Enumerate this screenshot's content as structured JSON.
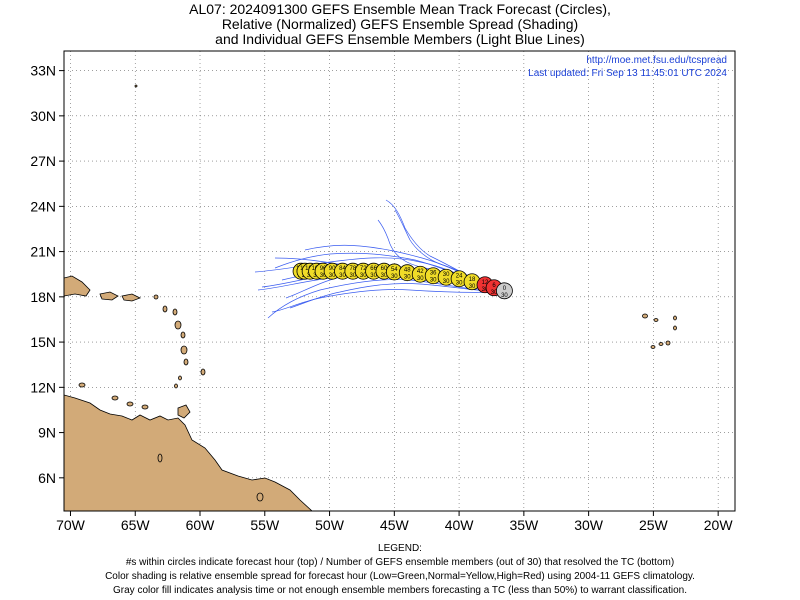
{
  "title": {
    "line1": "AL07: 2024091300 GEFS Ensemble Mean Track Forecast (Circles),",
    "line2": "Relative (Normalized) GEFS Ensemble Spread (Shading)",
    "line3": "and Individual GEFS Ensemble Members (Light Blue Lines)"
  },
  "credit": {
    "url": "http://moe.met.fsu.edu/tcspread",
    "updated": "Last updated: Fri Sep 13 11:45:01 UTC 2024"
  },
  "axes": {
    "lon_labels": [
      "70W",
      "65W",
      "60W",
      "55W",
      "50W",
      "45W",
      "40W",
      "35W",
      "30W",
      "25W",
      "20W"
    ],
    "lon_values": [
      -70,
      -65,
      -60,
      -55,
      -50,
      -45,
      -40,
      -35,
      -30,
      -25,
      -20
    ],
    "lat_labels": [
      "33N",
      "30N",
      "27N",
      "24N",
      "21N",
      "18N",
      "15N",
      "12N",
      "9N",
      "6N"
    ],
    "lat_values": [
      33,
      30,
      27,
      24,
      21,
      18,
      15,
      12,
      9,
      6
    ],
    "lon_range": [
      -70.5,
      -18.7
    ],
    "lat_range": [
      3.8,
      34.3
    ],
    "grid": "dotted"
  },
  "legend": {
    "heading": "LEGEND:",
    "line1": "#s within circles indicate forecast hour (top) / Number of GEFS ensemble members (out of 30) that resolved the TC (bottom)",
    "line2": "Color shading is relative ensemble spread for forecast hour (Low=Green,Normal=Yellow,High=Red) using 2004-11 GEFS climatology.",
    "line3": "Gray color fill indicates analysis time or not enough ensemble members forecasting a TC (less than 50%) to warrant classification."
  },
  "colors": {
    "land": "#d2aa78",
    "member_line": "#3a5cf0",
    "spread_high": "#f03232",
    "spread_normal": "#f0dc28",
    "analysis": "#cccccc"
  },
  "track": [
    {
      "hour": "0",
      "members": "30",
      "lon": -36.5,
      "lat": 18.4,
      "color": "gray"
    },
    {
      "hour": "6",
      "members": "30",
      "lon": -37.3,
      "lat": 18.6,
      "color": "red"
    },
    {
      "hour": "12",
      "members": "30",
      "lon": -38.0,
      "lat": 18.8,
      "color": "red"
    },
    {
      "hour": "18",
      "members": "30",
      "lon": -39.0,
      "lat": 19.0,
      "color": "yellow"
    },
    {
      "hour": "24",
      "members": "30",
      "lon": -40.0,
      "lat": 19.2,
      "color": "yellow"
    },
    {
      "hour": "30",
      "members": "30",
      "lon": -41.0,
      "lat": 19.3,
      "color": "yellow"
    },
    {
      "hour": "36",
      "members": "30",
      "lon": -42.0,
      "lat": 19.4,
      "color": "yellow"
    },
    {
      "hour": "42",
      "members": "30",
      "lon": -43.0,
      "lat": 19.5,
      "color": "yellow"
    },
    {
      "hour": "48",
      "members": "30",
      "lon": -44.0,
      "lat": 19.6,
      "color": "yellow"
    },
    {
      "hour": "54",
      "members": "30",
      "lon": -45.0,
      "lat": 19.65,
      "color": "yellow"
    },
    {
      "hour": "60",
      "members": "30",
      "lon": -45.8,
      "lat": 19.7,
      "color": "yellow"
    },
    {
      "hour": "66",
      "members": "30",
      "lon": -46.6,
      "lat": 19.7,
      "color": "yellow"
    },
    {
      "hour": "72",
      "members": "30",
      "lon": -47.4,
      "lat": 19.7,
      "color": "yellow"
    },
    {
      "hour": "78",
      "members": "30",
      "lon": -48.2,
      "lat": 19.7,
      "color": "yellow"
    },
    {
      "hour": "84",
      "members": "30",
      "lon": -49.0,
      "lat": 19.7,
      "color": "yellow"
    },
    {
      "hour": "90",
      "members": "30",
      "lon": -49.8,
      "lat": 19.7,
      "color": "yellow"
    },
    {
      "hour": "96",
      "members": "30",
      "lon": -50.5,
      "lat": 19.7,
      "color": "yellow"
    },
    {
      "hour": "102",
      "members": "30",
      "lon": -51.0,
      "lat": 19.7,
      "color": "yellow"
    },
    {
      "hour": "108",
      "members": "30",
      "lon": -51.5,
      "lat": 19.7,
      "color": "yellow"
    },
    {
      "hour": "114",
      "members": "30",
      "lon": -51.9,
      "lat": 19.7,
      "color": "yellow"
    },
    {
      "hour": "120",
      "members": "30",
      "lon": -52.2,
      "lat": 19.7,
      "color": "yellow"
    }
  ]
}
